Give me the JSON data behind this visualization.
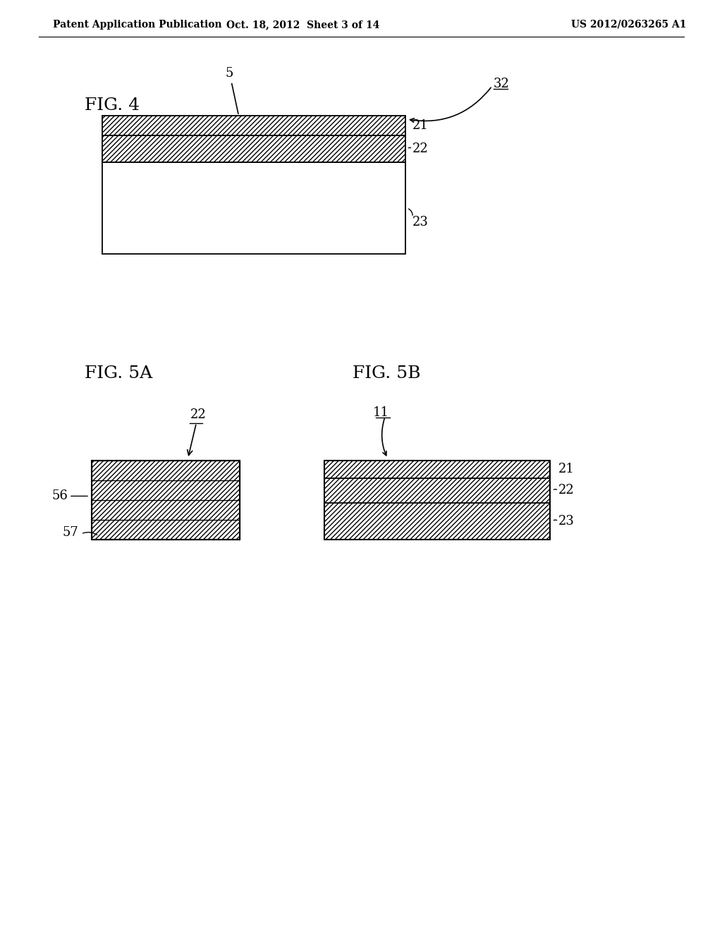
{
  "bg_color": "#ffffff",
  "header_left": "Patent Application Publication",
  "header_mid": "Oct. 18, 2012  Sheet 3 of 14",
  "header_right": "US 2012/0263265 A1",
  "fig4_label": "FIG. 4",
  "fig5a_label": "FIG. 5A",
  "fig5b_label": "FIG. 5B",
  "line_color": "#000000",
  "label_color": "#000000",
  "label_fontsize": 12,
  "fig_label_fontsize": 18,
  "header_fontsize": 10
}
